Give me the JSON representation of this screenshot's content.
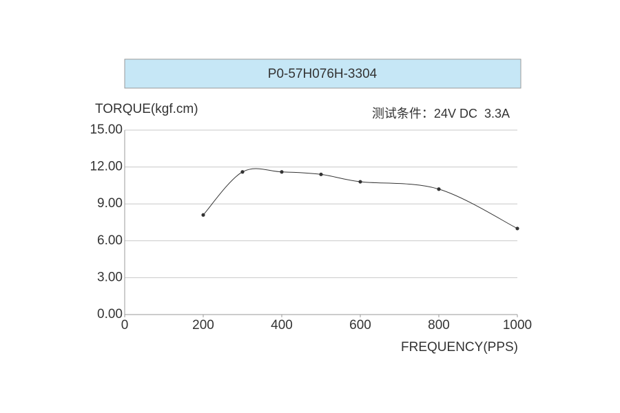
{
  "chart_data": {
    "type": "line",
    "title": "P0-57H076H-3304",
    "y_label": "TORQUE(kgf.cm)",
    "x_label": "FREQUENCY(PPS)",
    "annotation": "测试条件：24V DC  3.3A",
    "x": [
      200,
      300,
      400,
      500,
      600,
      800,
      1000
    ],
    "series": [
      {
        "name": "P0-57H076H-3304",
        "color": "#333333",
        "values": [
          8.1,
          11.6,
          11.6,
          11.4,
          10.8,
          10.2,
          7.0
        ]
      }
    ],
    "xlim": [
      0,
      1000
    ],
    "xticks": [
      0,
      200,
      400,
      600,
      800,
      1000
    ],
    "ylim": [
      0,
      15
    ],
    "yticks": [
      {
        "value": 0,
        "label": "0.00"
      },
      {
        "value": 3,
        "label": "3.00"
      },
      {
        "value": 6,
        "label": "6.00"
      },
      {
        "value": 9,
        "label": "9.00"
      },
      {
        "value": 12,
        "label": "12.00"
      },
      {
        "value": 15,
        "label": "15.00"
      }
    ],
    "grid": true,
    "smooth": true
  }
}
